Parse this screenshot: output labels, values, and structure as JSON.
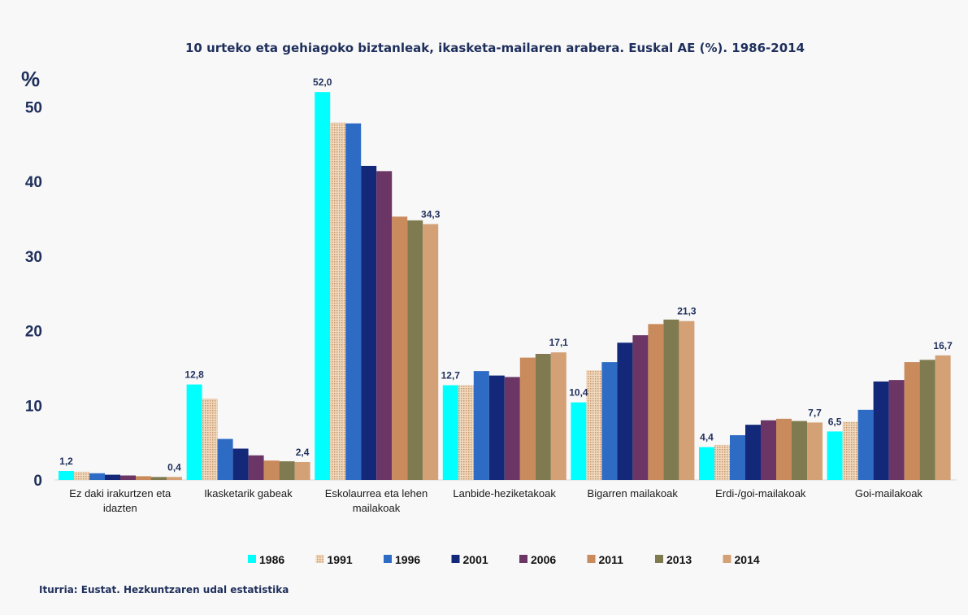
{
  "chart_data": {
    "type": "bar",
    "title": "10 urteko eta gehiagoko biztanleak, ikasketa-mailaren  arabera. Euskal AE (%). 1986-2014",
    "ylabel": "%",
    "ylim": [
      0,
      55
    ],
    "yticks": [
      0,
      10,
      20,
      30,
      40,
      50
    ],
    "grid": false,
    "legend": "bottom",
    "categories": [
      [
        "Ez daki irakurtzen eta",
        "idazten"
      ],
      [
        "Ikasketarik gabeak"
      ],
      [
        "Eskolaurrea eta lehen",
        "mailakoak"
      ],
      [
        "Lanbide-heziketakoak"
      ],
      [
        "Bigarren mailakoak"
      ],
      [
        "Erdi-/goi-mailakoak"
      ],
      [
        "Goi-mailakoak"
      ]
    ],
    "series": [
      {
        "name": "1986",
        "color": "#00ffff",
        "values": [
          1.2,
          12.8,
          52.0,
          12.7,
          10.4,
          4.4,
          6.5
        ]
      },
      {
        "name": "1991",
        "color": "#e8c7a0",
        "pattern": true,
        "values": [
          1.1,
          10.9,
          47.9,
          12.7,
          14.7,
          4.7,
          7.8
        ]
      },
      {
        "name": "1996",
        "color": "#2e6bc4",
        "values": [
          0.9,
          5.5,
          47.8,
          14.6,
          15.8,
          6.0,
          9.4
        ]
      },
      {
        "name": "2001",
        "color": "#14287a",
        "values": [
          0.7,
          4.2,
          42.1,
          14.0,
          18.4,
          7.4,
          13.2
        ]
      },
      {
        "name": "2006",
        "color": "#6b3565",
        "values": [
          0.6,
          3.3,
          41.4,
          13.8,
          19.4,
          8.0,
          13.4
        ]
      },
      {
        "name": "2011",
        "color": "#c98a5c",
        "values": [
          0.5,
          2.6,
          35.3,
          16.4,
          20.9,
          8.2,
          15.8
        ]
      },
      {
        "name": "2013",
        "color": "#7f7a4f",
        "values": [
          0.4,
          2.5,
          34.8,
          16.9,
          21.5,
          7.9,
          16.1
        ]
      },
      {
        "name": "2014",
        "color": "#d4a075",
        "values": [
          0.4,
          2.4,
          34.3,
          17.1,
          21.3,
          7.7,
          16.7
        ]
      }
    ],
    "data_labels": [
      {
        "text": "1,2",
        "category": 0,
        "series": 0
      },
      {
        "text": "0,4",
        "category": 0,
        "series": 7
      },
      {
        "text": "12,8",
        "category": 1,
        "series": 0
      },
      {
        "text": "2,4",
        "category": 1,
        "series": 7
      },
      {
        "text": "52,0",
        "category": 2,
        "series": 0
      },
      {
        "text": "34,3",
        "category": 2,
        "series": 7
      },
      {
        "text": "12,7",
        "category": 3,
        "series": 0
      },
      {
        "text": "17,1",
        "category": 3,
        "series": 7
      },
      {
        "text": "10,4",
        "category": 4,
        "series": 0
      },
      {
        "text": "21,3",
        "category": 4,
        "series": 7
      },
      {
        "text": "4,4",
        "category": 5,
        "series": 0
      },
      {
        "text": "7,7",
        "category": 5,
        "series": 7
      },
      {
        "text": "6,5",
        "category": 6,
        "series": 0
      },
      {
        "text": "16,7",
        "category": 6,
        "series": 7
      }
    ]
  },
  "source": "Iturria:  Eustat. Hezkuntzaren  udal estatistika"
}
